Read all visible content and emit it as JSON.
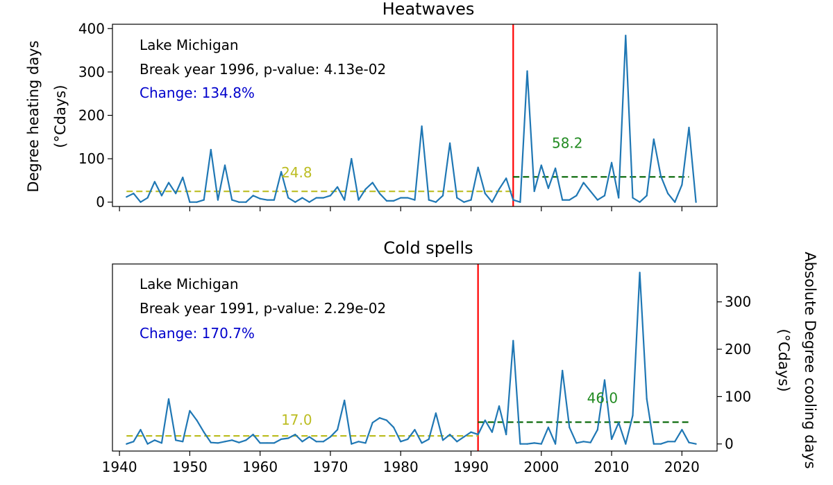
{
  "chart_data": [
    {
      "type": "line",
      "title": "Heatwaves",
      "ylabel_line1": "Degree heating days",
      "ylabel_line2": "(°Cdays)",
      "ylabel_side": "left",
      "ylim": [
        -10,
        410
      ],
      "yticks": [
        0,
        100,
        200,
        300,
        400
      ],
      "xlim": [
        1939,
        2025
      ],
      "location_label": "Lake Michigan",
      "break_label": "Break year 1996, p-value: 4.13e-02",
      "change_label": "Change: 134.8%",
      "break_year": 1996,
      "before_mean": 24.8,
      "after_mean": 58.2,
      "before_mean_label": "24.8",
      "after_mean_label": "58.2",
      "x": [
        1941,
        1942,
        1943,
        1944,
        1945,
        1946,
        1947,
        1948,
        1949,
        1950,
        1951,
        1952,
        1953,
        1954,
        1955,
        1956,
        1957,
        1958,
        1959,
        1960,
        1961,
        1962,
        1963,
        1964,
        1965,
        1966,
        1967,
        1968,
        1969,
        1970,
        1971,
        1972,
        1973,
        1974,
        1975,
        1976,
        1977,
        1978,
        1979,
        1980,
        1981,
        1982,
        1983,
        1984,
        1985,
        1986,
        1987,
        1988,
        1989,
        1990,
        1991,
        1992,
        1993,
        1994,
        1995,
        1996,
        1997,
        1998,
        1999,
        2000,
        2001,
        2002,
        2003,
        2004,
        2005,
        2006,
        2007,
        2008,
        2009,
        2010,
        2011,
        2012,
        2013,
        2014,
        2015,
        2016,
        2017,
        2018,
        2019,
        2020,
        2021,
        2022
      ],
      "values": [
        12,
        20,
        0,
        10,
        47,
        15,
        45,
        20,
        57,
        0,
        0,
        5,
        121,
        5,
        85,
        5,
        0,
        0,
        15,
        8,
        5,
        5,
        70,
        10,
        0,
        10,
        0,
        10,
        10,
        15,
        35,
        5,
        100,
        5,
        30,
        45,
        20,
        3,
        3,
        10,
        10,
        5,
        175,
        5,
        0,
        15,
        136,
        10,
        0,
        5,
        80,
        20,
        0,
        30,
        55,
        5,
        0,
        302,
        25,
        85,
        32,
        78,
        5,
        5,
        15,
        45,
        25,
        5,
        15,
        91,
        10,
        384,
        10,
        0,
        15,
        145,
        60,
        20,
        0,
        40,
        172,
        0
      ]
    },
    {
      "type": "line",
      "title": "Cold spells",
      "ylabel_line1": "Absolute Degree cooling days",
      "ylabel_line2": "(°Cdays)",
      "ylabel_side": "right",
      "ylim": [
        -15,
        380
      ],
      "yticks": [
        0,
        100,
        200,
        300
      ],
      "xlim": [
        1939,
        2025
      ],
      "xticks": [
        1940,
        1950,
        1960,
        1970,
        1980,
        1990,
        2000,
        2010,
        2020
      ],
      "location_label": "Lake Michigan",
      "break_label": "Break year 1991, p-value: 2.29e-02",
      "change_label": "Change: 170.7%",
      "break_year": 1991,
      "before_mean": 17.0,
      "after_mean": 46.0,
      "before_mean_label": "17.0",
      "after_mean_label": "46.0",
      "x": [
        1941,
        1942,
        1943,
        1944,
        1945,
        1946,
        1947,
        1948,
        1949,
        1950,
        1951,
        1952,
        1953,
        1954,
        1955,
        1956,
        1957,
        1958,
        1959,
        1960,
        1961,
        1962,
        1963,
        1964,
        1965,
        1966,
        1967,
        1968,
        1969,
        1970,
        1971,
        1972,
        1973,
        1974,
        1975,
        1976,
        1977,
        1978,
        1979,
        1980,
        1981,
        1982,
        1983,
        1984,
        1985,
        1986,
        1987,
        1988,
        1989,
        1990,
        1991,
        1992,
        1993,
        1994,
        1995,
        1996,
        1997,
        1998,
        1999,
        2000,
        2001,
        2002,
        2003,
        2004,
        2005,
        2006,
        2007,
        2008,
        2009,
        2010,
        2011,
        2012,
        2013,
        2014,
        2015,
        2016,
        2017,
        2018,
        2019,
        2020,
        2021,
        2022
      ],
      "values": [
        0,
        5,
        30,
        0,
        8,
        2,
        95,
        8,
        5,
        70,
        50,
        25,
        3,
        2,
        5,
        8,
        3,
        8,
        20,
        2,
        2,
        2,
        10,
        12,
        20,
        5,
        15,
        5,
        5,
        15,
        30,
        92,
        0,
        5,
        2,
        45,
        55,
        50,
        35,
        5,
        10,
        30,
        2,
        10,
        65,
        8,
        20,
        5,
        15,
        25,
        20,
        50,
        25,
        80,
        20,
        218,
        0,
        0,
        2,
        0,
        35,
        0,
        155,
        35,
        2,
        5,
        3,
        30,
        135,
        10,
        45,
        0,
        60,
        362,
        95,
        0,
        0,
        5,
        5,
        30,
        3,
        0
      ]
    }
  ]
}
